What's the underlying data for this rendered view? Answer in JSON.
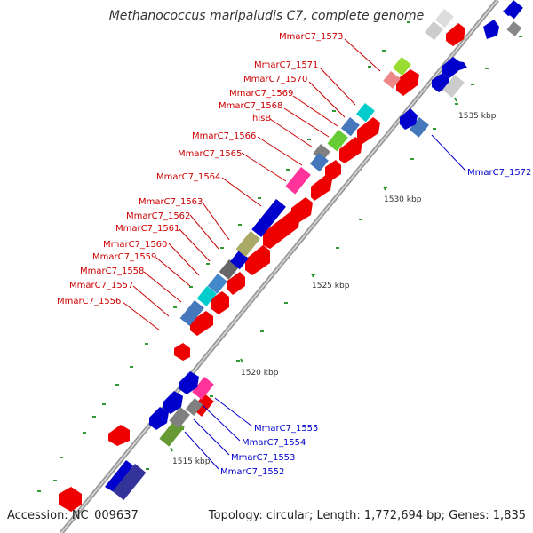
{
  "title": "Methanococcus maripaludis C7, complete genome",
  "accession": "Accession: NC_009637",
  "topology": "Topology: circular; Length: 1,772,694 bp; Genes: 1,835",
  "colors": {
    "forward_label": "#cc0000",
    "reverse_label": "#0000cc",
    "backbone": "#888888",
    "tick": "#339933"
  },
  "scale_ticks": [
    "1515 kbp",
    "1520 kbp",
    "1525 kbp",
    "1530 kbp",
    "1535 kbp"
  ],
  "red_labels": [
    "MmarC7_1573",
    "MmarC7_1571",
    "MmarC7_1570",
    "MmarC7_1569",
    "MmarC7_1568",
    "hisB",
    "MmarC7_1566",
    "MmarC7_1565",
    "MmarC7_1564",
    "MmarC7_1563",
    "MmarC7_1562",
    "MmarC7_1561",
    "MmarC7_1560",
    "MmarC7_1559",
    "MmarC7_1558",
    "MmarC7_1557",
    "MmarC7_1556"
  ],
  "blue_labels": [
    "MmarC7_1572",
    "MmarC7_1555",
    "MmarC7_1554",
    "MmarC7_1553",
    "MmarC7_1552"
  ]
}
